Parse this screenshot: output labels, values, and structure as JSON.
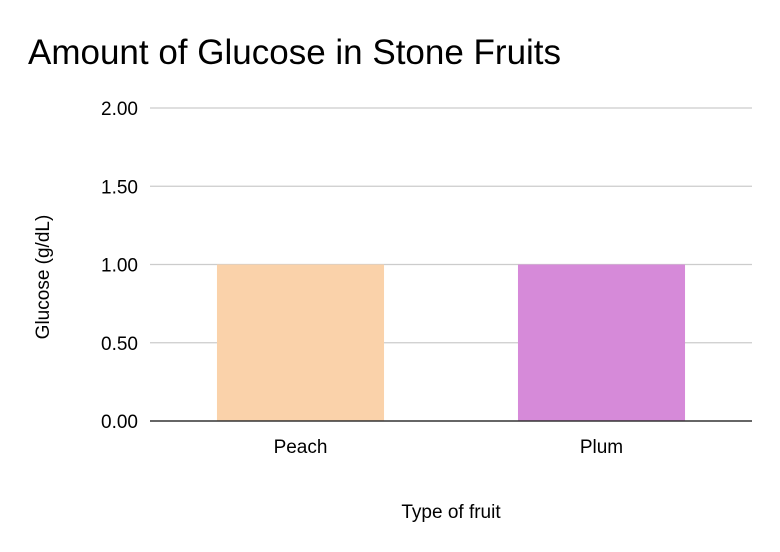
{
  "chart_data": {
    "type": "bar",
    "title": "Amount of Glucose in Stone Fruits",
    "xlabel": "Type of fruit",
    "ylabel": "Glucose (g/dL)",
    "categories": [
      "Peach",
      "Plum"
    ],
    "values": [
      1.0,
      1.0
    ],
    "colors": [
      "#fad2aa",
      "#d68ad9"
    ],
    "ylim": [
      0,
      2
    ],
    "yticks": [
      "0.00",
      "0.50",
      "1.00",
      "1.50",
      "2.00"
    ],
    "grid": true,
    "legend": "none"
  }
}
